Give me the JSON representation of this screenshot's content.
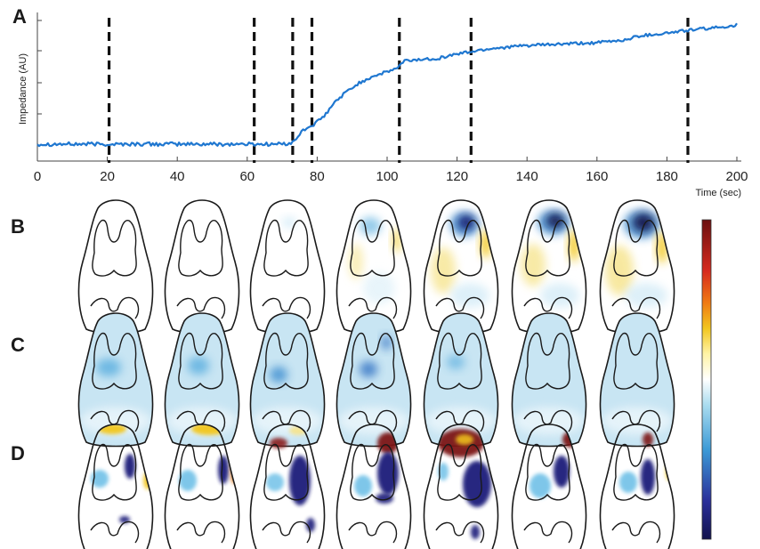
{
  "panels": {
    "a": "A",
    "b": "B",
    "c": "C",
    "d": "D"
  },
  "chart_data": {
    "type": "line",
    "title": "",
    "xlabel": "Time (sec)",
    "ylabel": "Impedance (AU)",
    "xlim": [
      0,
      200
    ],
    "ylim": [
      0,
      10
    ],
    "xticks": [
      0,
      20,
      40,
      60,
      80,
      100,
      120,
      140,
      160,
      180,
      200
    ],
    "x": [
      0,
      20,
      40,
      60,
      70,
      73,
      76,
      79,
      82,
      85,
      88,
      92,
      96,
      100,
      103,
      105,
      110,
      115,
      120,
      125,
      130,
      140,
      150,
      160,
      168,
      172,
      176,
      180,
      186,
      190,
      195,
      200
    ],
    "series": [
      {
        "name": "Impedance",
        "color": "#1f77d0",
        "values": [
          0.9,
          0.9,
          0.9,
          0.9,
          0.9,
          1.0,
          1.9,
          2.3,
          2.9,
          3.9,
          4.6,
          5.3,
          5.8,
          6.1,
          6.4,
          6.9,
          7.0,
          7.1,
          7.4,
          7.6,
          7.8,
          8.0,
          8.1,
          8.2,
          8.4,
          8.7,
          8.8,
          8.9,
          9.1,
          9.2,
          9.3,
          9.5
        ]
      }
    ],
    "event_markers": [
      20.5,
      62,
      73,
      78.5,
      103.5,
      124,
      186
    ]
  },
  "image_rows": [
    "B",
    "C",
    "D"
  ],
  "colors": {
    "line": "#1f77d0",
    "colorbar": [
      "#12124d",
      "#3643a8",
      "#3c9ad6",
      "#aadcef",
      "#ffffff",
      "#fff3a6",
      "#f2c61e",
      "#f07a12",
      "#d62a1e",
      "#821616"
    ]
  }
}
